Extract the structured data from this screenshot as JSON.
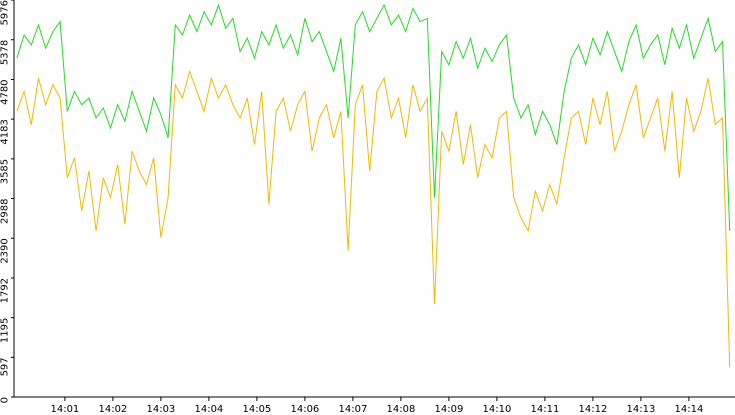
{
  "chart_data": {
    "type": "line",
    "x": [
      0,
      0.15,
      0.3,
      0.45,
      0.6,
      0.75,
      0.9,
      1.05,
      1.2,
      1.35,
      1.5,
      1.65,
      1.8,
      1.95,
      2.1,
      2.25,
      2.4,
      2.55,
      2.7,
      2.85,
      3,
      3.15,
      3.3,
      3.45,
      3.6,
      3.75,
      3.9,
      4.05,
      4.2,
      4.35,
      4.5,
      4.65,
      4.8,
      4.95,
      5.1,
      5.25,
      5.4,
      5.55,
      5.7,
      5.85,
      6,
      6.15,
      6.3,
      6.45,
      6.6,
      6.75,
      6.9,
      7.05,
      7.2,
      7.35,
      7.5,
      7.65,
      7.8,
      7.95,
      8.1,
      8.25,
      8.4,
      8.55,
      8.7,
      8.85,
      9,
      9.15,
      9.3,
      9.45,
      9.6,
      9.75,
      9.9,
      10.05,
      10.2,
      10.35,
      10.5,
      10.65,
      10.8,
      10.95,
      11.1,
      11.25,
      11.4,
      11.55,
      11.7,
      11.85,
      12,
      12.15,
      12.3,
      12.45,
      12.6,
      12.75,
      12.9,
      13.05,
      13.2,
      13.35,
      13.5,
      13.65,
      13.8,
      13.95,
      14.1,
      14.25,
      14.4,
      14.55,
      14.7,
      14.85
    ],
    "series": [
      {
        "color": "#f5b800",
        "values": [
          4300,
          4600,
          4100,
          4800,
          4400,
          4700,
          4500,
          3300,
          3600,
          2800,
          3400,
          2500,
          3300,
          3000,
          3500,
          2600,
          3700,
          3400,
          3200,
          3600,
          2400,
          3000,
          4700,
          4500,
          4900,
          4600,
          4300,
          4800,
          4500,
          4700,
          4400,
          4200,
          4500,
          3800,
          4600,
          2900,
          4300,
          4500,
          4000,
          4400,
          4600,
          3700,
          4200,
          4400,
          3900,
          4300,
          2200,
          4400,
          4700,
          3400,
          4600,
          4800,
          4200,
          4500,
          3900,
          4700,
          4300,
          4500,
          1400,
          4000,
          3700,
          4300,
          3500,
          4100,
          3300,
          3800,
          3600,
          4200,
          4300,
          3000,
          2700,
          2500,
          3100,
          2800,
          3200,
          2900,
          3600,
          4200,
          4300,
          3800,
          4500,
          4100,
          4600,
          3700,
          4000,
          4400,
          4700,
          3900,
          4200,
          4500,
          3700,
          4600,
          3300,
          4500,
          4000,
          4300,
          4800,
          4100,
          4200,
          450
        ]
      },
      {
        "color": "#22dd22",
        "values": [
          5100,
          5450,
          5300,
          5600,
          5250,
          5500,
          5650,
          4300,
          4600,
          4400,
          4500,
          4200,
          4350,
          4050,
          4400,
          4150,
          4600,
          4300,
          4000,
          4500,
          4250,
          3900,
          5600,
          5450,
          5750,
          5500,
          5800,
          5600,
          5900,
          5550,
          5700,
          5200,
          5400,
          5100,
          5500,
          5300,
          5600,
          5250,
          5450,
          5150,
          5700,
          5350,
          5500,
          5200,
          4900,
          5400,
          4200,
          5600,
          5800,
          5500,
          5700,
          5900,
          5600,
          5750,
          5500,
          5850,
          5650,
          5700,
          3000,
          5200,
          5000,
          5350,
          5100,
          5400,
          4950,
          5250,
          5050,
          5300,
          5450,
          4500,
          4200,
          4400,
          3950,
          4300,
          4100,
          3800,
          4600,
          5100,
          5300,
          5000,
          5400,
          5150,
          5500,
          5200,
          4900,
          5350,
          5600,
          5100,
          5300,
          5450,
          5000,
          5550,
          5250,
          5600,
          5100,
          5400,
          5700,
          5200,
          5350,
          2500
        ]
      }
    ],
    "xlim": [
      -0.06,
      14.96
    ],
    "xticks": [
      {
        "value": 1,
        "label": "14:01"
      },
      {
        "value": 2,
        "label": "14:02"
      },
      {
        "value": 3,
        "label": "14:03"
      },
      {
        "value": 4,
        "label": "14:04"
      },
      {
        "value": 5,
        "label": "14:05"
      },
      {
        "value": 6,
        "label": "14:06"
      },
      {
        "value": 7,
        "label": "14:07"
      },
      {
        "value": 8,
        "label": "14:08"
      },
      {
        "value": 9,
        "label": "14:09"
      },
      {
        "value": 10,
        "label": "14:10"
      },
      {
        "value": 11,
        "label": "14:11"
      },
      {
        "value": 12,
        "label": "14:12"
      },
      {
        "value": 13,
        "label": "14:13"
      },
      {
        "value": 14,
        "label": "14:14"
      }
    ],
    "ylim": [
      0,
      5976
    ],
    "yticks": [
      0,
      597,
      1195,
      1792,
      2390,
      2988,
      3585,
      4183,
      4780,
      5378,
      5976
    ]
  }
}
